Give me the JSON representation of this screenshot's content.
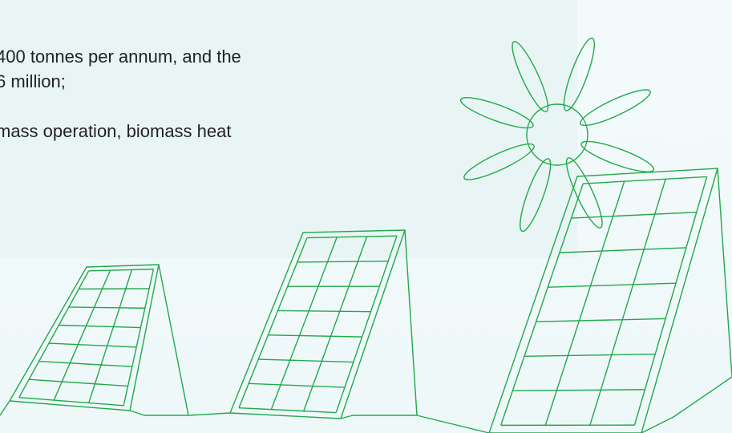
{
  "text_lines": [
    "400 tonnes per annum, and the",
    "6 million;",
    "mass operation, biomass heat"
  ]
}
